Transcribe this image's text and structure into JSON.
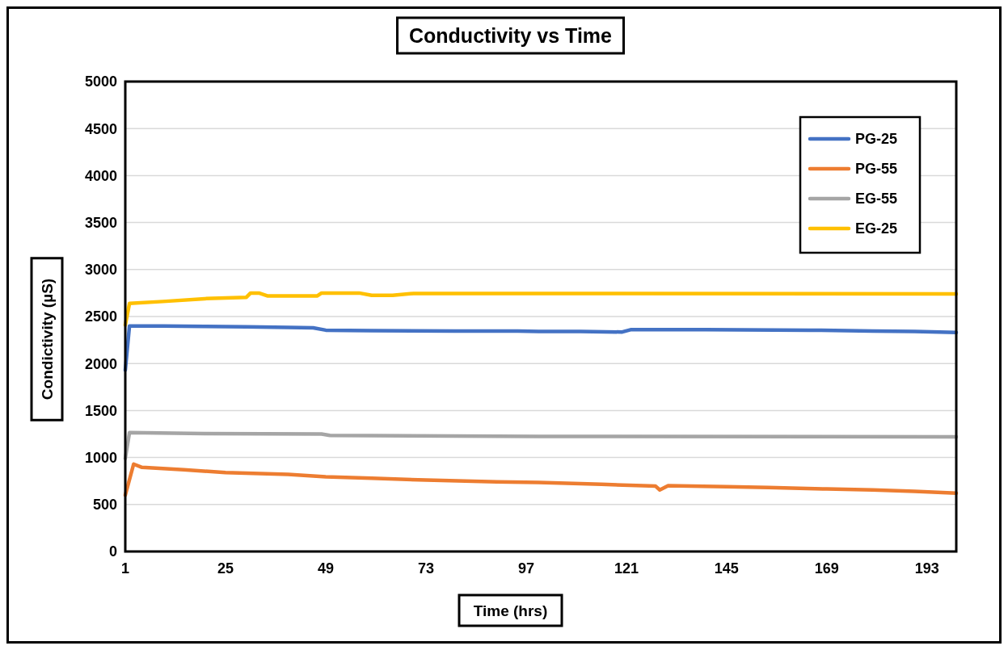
{
  "chart_data": {
    "type": "line",
    "title": "Conductivity vs Time",
    "xlabel": "Time (hrs)",
    "ylabel": "Condictivity (µS)",
    "xlim": [
      1,
      200
    ],
    "xticks": [
      1,
      25,
      49,
      73,
      97,
      121,
      145,
      169,
      193
    ],
    "ylim": [
      0,
      5000
    ],
    "yticks": [
      0,
      500,
      1000,
      1500,
      2000,
      2500,
      3000,
      3500,
      4000,
      4500,
      5000
    ],
    "grid": "y",
    "legend": "top right",
    "marker": "none",
    "line_style": "solid",
    "series": [
      {
        "name": "PG-25",
        "color": "#4472c4",
        "x": [
          1,
          2,
          10,
          20,
          30,
          40,
          46,
          49,
          60,
          80,
          95,
          100,
          110,
          120,
          122,
          140,
          165,
          180,
          190,
          200
        ],
        "values": [
          1930,
          2400,
          2400,
          2395,
          2390,
          2385,
          2380,
          2355,
          2350,
          2345,
          2345,
          2340,
          2340,
          2335,
          2360,
          2360,
          2355,
          2345,
          2340,
          2330
        ]
      },
      {
        "name": "PG-55",
        "color": "#ed7d31",
        "x": [
          1,
          3,
          5,
          15,
          25,
          40,
          49,
          60,
          73,
          90,
          100,
          115,
          125,
          128,
          129,
          131,
          145,
          155,
          169,
          180,
          190,
          200
        ],
        "values": [
          600,
          930,
          895,
          870,
          840,
          820,
          795,
          780,
          760,
          740,
          735,
          715,
          700,
          695,
          655,
          700,
          690,
          680,
          665,
          655,
          640,
          620
        ]
      },
      {
        "name": "EG-55",
        "color": "#a5a5a5",
        "x": [
          1,
          2,
          20,
          48,
          50,
          100,
          200
        ],
        "values": [
          990,
          1265,
          1255,
          1250,
          1235,
          1225,
          1220
        ]
      },
      {
        "name": "EG-25",
        "color": "#ffc000",
        "x": [
          1,
          2,
          10,
          20,
          30,
          31,
          33,
          35,
          47,
          48,
          57,
          60,
          65,
          70,
          120,
          200
        ],
        "values": [
          2410,
          2640,
          2660,
          2690,
          2705,
          2750,
          2750,
          2720,
          2720,
          2750,
          2750,
          2725,
          2725,
          2745,
          2745,
          2740
        ]
      }
    ]
  }
}
